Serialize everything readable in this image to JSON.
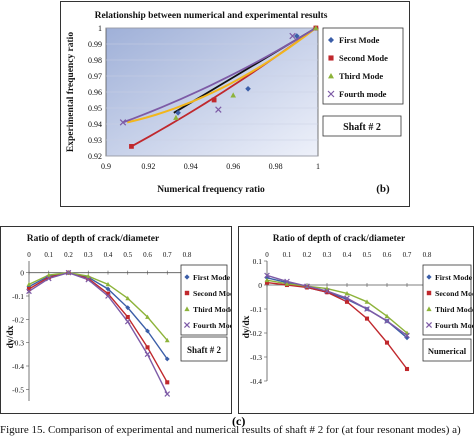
{
  "chart_data": [
    {
      "type": "scatter",
      "title": "Relationship between numerical and experimental results",
      "xlabel": "Numerical  frequency ratio",
      "ylabel": "Experimental frequency ratio",
      "xlim": [
        0.9,
        1.0
      ],
      "ylim": [
        0.92,
        1.0
      ],
      "xticks": [
        "0.9",
        "0.92",
        "0.94",
        "0.96",
        "0.98",
        "1"
      ],
      "yticks": [
        "0.92",
        "0.93",
        "0.94",
        "0.95",
        "0.96",
        "0.97",
        "0.98",
        "0.99",
        "1"
      ],
      "legend_position": "right",
      "annotation": "Shaft  # 2",
      "panel_label": "(b)",
      "series": [
        {
          "name": "First Mode",
          "color": "#3b5ea8",
          "marker": "diamond",
          "x": [
            0.934,
            0.967,
            0.99,
            0.999
          ],
          "y": [
            0.947,
            0.962,
            0.995,
            1.0
          ],
          "fit_x": [
            0.932,
            0.999
          ],
          "fit_y": [
            0.947,
            1.0
          ]
        },
        {
          "name": "Second Mode",
          "color": "#c0282d",
          "marker": "square",
          "x": [
            0.912,
            0.951,
            0.999
          ],
          "y": [
            0.926,
            0.955,
            1.0
          ],
          "fit_x": [
            0.912,
            0.999
          ],
          "fit_y": [
            0.926,
            1.0
          ]
        },
        {
          "name": "Third Mode",
          "color": "#8db33a",
          "marker": "triangle",
          "x": [
            0.933,
            0.96,
            0.999
          ],
          "y": [
            0.944,
            0.958,
            1.0
          ],
          "fit_x": [
            0.91,
            0.999
          ],
          "fit_y": [
            0.941,
            1.0
          ]
        },
        {
          "name": "Fourth mode",
          "color": "#7d5aa6",
          "marker": "x",
          "x": [
            0.908,
            0.953,
            0.988
          ],
          "y": [
            0.941,
            0.949,
            0.995
          ],
          "fit_x": [
            0.908,
            0.999
          ],
          "fit_y": [
            0.941,
            1.0
          ]
        }
      ]
    },
    {
      "type": "line",
      "title": "Ratio of depth of crack/diameter",
      "xlabel": "",
      "ylabel": "dy/dx",
      "xlim": [
        0,
        0.8
      ],
      "ylim": [
        -0.55,
        0.05
      ],
      "xticks": [
        "0",
        "0.1",
        "0.2",
        "0.3",
        "0.4",
        "0.5",
        "0.6",
        "0.7",
        "0.8"
      ],
      "yticks": [
        "0",
        "-0.1",
        "-0.2",
        "-0.3",
        "-0.4",
        "-0.5"
      ],
      "legend_position": "right",
      "annotation": "Shaft  # 2",
      "x": [
        0,
        0.1,
        0.2,
        0.3,
        0.4,
        0.5,
        0.6,
        0.7
      ],
      "series": [
        {
          "name": "First Mode",
          "color": "#3b5ea8",
          "marker": "diamond",
          "values": [
            -0.06,
            -0.015,
            0,
            -0.02,
            -0.07,
            -0.15,
            -0.25,
            -0.37
          ]
        },
        {
          "name": "Second Mode",
          "color": "#c0282d",
          "marker": "square",
          "values": [
            -0.07,
            -0.02,
            0,
            -0.025,
            -0.09,
            -0.19,
            -0.32,
            -0.47
          ]
        },
        {
          "name": "Third Mode",
          "color": "#8db33a",
          "marker": "triangle",
          "values": [
            -0.05,
            -0.01,
            0,
            -0.015,
            -0.05,
            -0.11,
            -0.19,
            -0.29
          ]
        },
        {
          "name": "Fourth Mode",
          "color": "#7d5aa6",
          "marker": "x",
          "values": [
            -0.08,
            -0.025,
            0,
            -0.03,
            -0.1,
            -0.21,
            -0.35,
            -0.52
          ]
        }
      ]
    },
    {
      "type": "line",
      "title": "Ratio of depth of crack/diameter",
      "xlabel": "",
      "ylabel": "dy/dx",
      "xlim": [
        0,
        0.8
      ],
      "ylim": [
        -0.4,
        0.1
      ],
      "xticks": [
        "0",
        "0.1",
        "0.2",
        "0.3",
        "0.4",
        "0.5",
        "0.6",
        "0.7",
        "0.8"
      ],
      "yticks": [
        "0.1",
        "0",
        "-0.1",
        "-0.2",
        "-0.3",
        "-0.4"
      ],
      "legend_position": "right",
      "annotation": "Numerical",
      "x": [
        0,
        0.1,
        0.2,
        0.3,
        0.4,
        0.5,
        0.6,
        0.7
      ],
      "series": [
        {
          "name": "First Mode",
          "color": "#3b5ea8",
          "marker": "diamond",
          "values": [
            0.03,
            0.01,
            -0.01,
            -0.03,
            -0.06,
            -0.1,
            -0.15,
            -0.22
          ]
        },
        {
          "name": "Second Mode",
          "color": "#c0282d",
          "marker": "square",
          "values": [
            0.01,
            0,
            -0.01,
            -0.03,
            -0.07,
            -0.14,
            -0.24,
            -0.35
          ]
        },
        {
          "name": "Third Mode",
          "color": "#8db33a",
          "marker": "triangle",
          "values": [
            0.02,
            0.005,
            -0.005,
            -0.015,
            -0.035,
            -0.07,
            -0.13,
            -0.2
          ]
        },
        {
          "name": "Fourth Mode",
          "color": "#7d5aa6",
          "marker": "x",
          "values": [
            0.04,
            0.015,
            -0.005,
            -0.025,
            -0.055,
            -0.1,
            -0.15,
            -0.21
          ]
        }
      ]
    }
  ],
  "panel_label_c": "(c)",
  "caption": "Figure 15. Comparison of experimental and numerical results of shaft # 2 for (at four resonant modes) a)"
}
